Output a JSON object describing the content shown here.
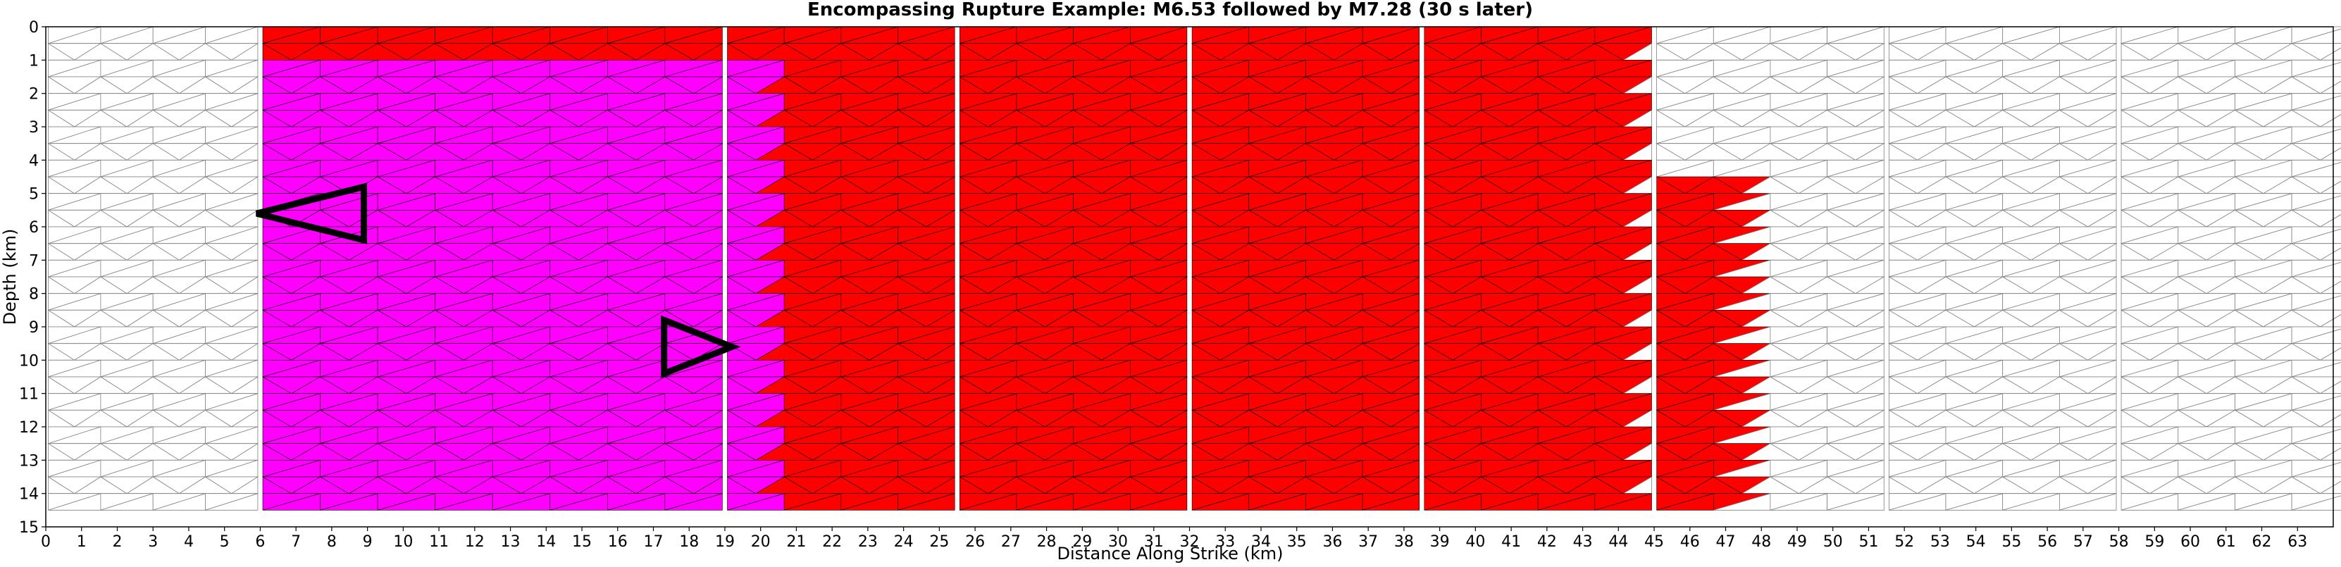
{
  "chart_data": {
    "type": "heatmap",
    "title": "Encompassing Rupture Example: M6.53 followed by M7.28 (30 s later)",
    "xlabel": "Distance Along Strike (km)",
    "ylabel": "Depth (km)",
    "xlim": [
      0,
      64
    ],
    "ylim": [
      15,
      0
    ],
    "x_ticks": [
      0,
      1,
      2,
      3,
      4,
      5,
      6,
      7,
      8,
      9,
      10,
      11,
      12,
      13,
      14,
      15,
      16,
      17,
      18,
      19,
      20,
      21,
      22,
      23,
      24,
      25,
      26,
      27,
      28,
      29,
      30,
      31,
      32,
      33,
      34,
      35,
      36,
      37,
      38,
      39,
      40,
      41,
      42,
      43,
      44,
      45,
      46,
      47,
      48,
      49,
      50,
      51,
      52,
      53,
      54,
      55,
      56,
      57,
      58,
      59,
      60,
      61,
      62,
      63
    ],
    "y_ticks": [
      0,
      1,
      2,
      3,
      4,
      5,
      6,
      7,
      8,
      9,
      10,
      11,
      12,
      13,
      14,
      15
    ],
    "fault_sections_km": [
      [
        0,
        6
      ],
      [
        6,
        19
      ],
      [
        19,
        25.5
      ],
      [
        25.5,
        32
      ],
      [
        32,
        38.5
      ],
      [
        38.5,
        45
      ],
      [
        45,
        51.5
      ],
      [
        51.5,
        58
      ],
      [
        58,
        64.5
      ]
    ],
    "colors": {
      "ruptured_both": "#ff0000",
      "ruptured_first_event": "#ff00ff",
      "unruptured_fill": "#ffffff",
      "triangle_edge": "#808080",
      "hypocenter_marker": "#000000"
    },
    "rupture_regions": [
      {
        "event": "M7.28",
        "color_key": "ruptured_both",
        "x_range": [
          6,
          44.5
        ],
        "depth_range": [
          0,
          14.5
        ]
      },
      {
        "event": "M6.53",
        "color_key": "ruptured_first_event",
        "x_range": [
          6,
          20.5
        ],
        "depth_range": [
          1,
          14.5
        ]
      },
      {
        "event": "M7.28",
        "color_key": "ruptured_both",
        "x_range": [
          45,
          47.5
        ],
        "depth_range": [
          4.5,
          14.5
        ]
      }
    ],
    "hypocenters": [
      {
        "event": "M6.53",
        "x_km": 7.5,
        "depth_km": 5.6
      },
      {
        "event": "M7.28",
        "x_km": 18.0,
        "depth_km": 9.6
      }
    ],
    "grid": false
  }
}
